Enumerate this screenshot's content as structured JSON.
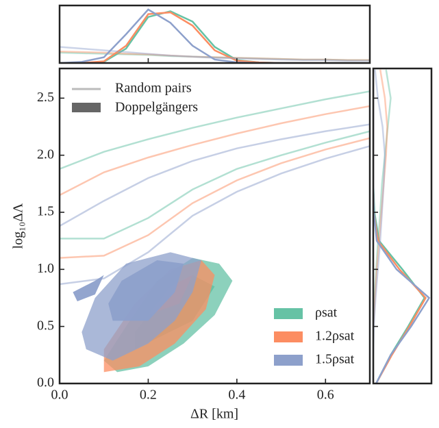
{
  "chart_data": {
    "type": "joint-kde",
    "xlabel": "ΔR [km]",
    "ylabel": "log₁₀ΔΛ",
    "xlim": [
      0,
      0.7
    ],
    "ylim": [
      0,
      2.76
    ],
    "xticks": [
      {
        "value": 0,
        "label": "0.0"
      },
      0.2,
      0.4,
      0.6
    ],
    "yticks": [
      {
        "value": 0,
        "label": "0.0"
      },
      0.5,
      {
        "value": 1,
        "label": "1.0"
      },
      1.5,
      {
        "value": 2,
        "label": "2.0"
      },
      2.5
    ],
    "style_legend": {
      "location": "upper left",
      "line": "Random pairs",
      "fill": "Doppelgängers"
    },
    "legend": "lower right",
    "top_margin": {
      "ylim": [
        0,
        1
      ],
      "x": [
        0,
        0.05,
        0.1,
        0.15,
        0.2,
        0.25,
        0.3,
        0.35,
        0.4,
        0.45,
        0.5,
        0.55,
        0.6,
        0.65,
        0.7
      ]
    },
    "right_margin": {
      "xlim": [
        0,
        1
      ],
      "y": [
        0,
        0.25,
        0.5,
        0.75,
        1,
        1.25,
        1.5,
        1.75,
        2,
        2.25,
        2.5,
        2.75
      ]
    },
    "series": [
      {
        "name": "ρsat",
        "color": "#66c2a5",
        "random_curves": [
          {
            "x": [
              0,
              0.1,
              0.2,
              0.3,
              0.4,
              0.5,
              0.6,
              0.7
            ],
            "y": [
              1.88,
              2.03,
              2.14,
              2.24,
              2.33,
              2.41,
              2.49,
              2.56
            ]
          },
          {
            "x": [
              0,
              0.1,
              0.2,
              0.3,
              0.4,
              0.5,
              0.6,
              0.7
            ],
            "y": [
              1.27,
              1.27,
              1.45,
              1.7,
              1.88,
              2.0,
              2.11,
              2.21
            ]
          }
        ],
        "regions": [
          {
            "x": [
              0.13,
              0.2,
              0.28,
              0.35,
              0.39,
              0.36,
              0.3,
              0.22,
              0.15,
              0.1
            ],
            "y": [
              0.1,
              0.15,
              0.35,
              0.6,
              0.9,
              1.05,
              1.1,
              0.9,
              0.5,
              0.2
            ]
          },
          {
            "x": [
              0.17,
              0.3,
              0.35,
              0.3,
              0.22,
              0.17
            ],
            "y": [
              0.3,
              0.55,
              0.85,
              0.95,
              0.7,
              0.45
            ]
          }
        ],
        "top_random": [
          0.18,
          0.17,
          0.16,
          0.15,
          0.14,
          0.12,
          0.11,
          0.1,
          0.09,
          0.08,
          0.07,
          0.06,
          0.06,
          0.05,
          0.05
        ],
        "top_doppel": [
          0,
          0,
          0.02,
          0.25,
          0.8,
          0.9,
          0.72,
          0.28,
          0.05,
          0.01,
          0,
          0,
          0,
          0,
          0
        ],
        "right_random": [
          0,
          0,
          0,
          0.02,
          0.05,
          0.08,
          0.12,
          0.15,
          0.2,
          0.25,
          0.3,
          0.22
        ],
        "right_doppel": [
          0.05,
          0.3,
          0.6,
          0.88,
          0.5,
          0.1,
          0.02,
          0,
          0,
          0,
          0,
          0
        ]
      },
      {
        "name": "1.2ρsat",
        "color": "#fc8d62",
        "random_curves": [
          {
            "x": [
              0,
              0.1,
              0.2,
              0.3,
              0.4,
              0.5,
              0.6,
              0.7
            ],
            "y": [
              1.65,
              1.85,
              1.98,
              2.09,
              2.19,
              2.28,
              2.36,
              2.43
            ]
          },
          {
            "x": [
              0,
              0.1,
              0.2,
              0.3,
              0.4,
              0.5,
              0.6,
              0.7
            ],
            "y": [
              1.1,
              1.12,
              1.3,
              1.58,
              1.78,
              1.93,
              2.05,
              2.15
            ]
          }
        ],
        "regions": [
          {
            "x": [
              0.1,
              0.18,
              0.26,
              0.33,
              0.35,
              0.32,
              0.25,
              0.17,
              0.1
            ],
            "y": [
              0.1,
              0.15,
              0.35,
              0.65,
              0.95,
              1.08,
              1.0,
              0.7,
              0.3
            ]
          },
          {
            "x": [
              0.2,
              0.27,
              0.3,
              0.25
            ],
            "y": [
              0.6,
              0.7,
              0.95,
              0.85
            ]
          }
        ],
        "top_random": [
          0.2,
          0.19,
          0.18,
          0.16,
          0.15,
          0.13,
          0.11,
          0.1,
          0.09,
          0.08,
          0.07,
          0.06,
          0.06,
          0.05,
          0.05
        ],
        "top_doppel": [
          0,
          0,
          0.03,
          0.3,
          0.85,
          0.88,
          0.65,
          0.22,
          0.04,
          0.01,
          0,
          0,
          0,
          0,
          0
        ],
        "right_random": [
          0,
          0,
          0,
          0.03,
          0.06,
          0.1,
          0.14,
          0.18,
          0.22,
          0.24,
          0.2,
          0.12
        ],
        "right_doppel": [
          0.05,
          0.32,
          0.62,
          0.9,
          0.45,
          0.08,
          0.01,
          0,
          0,
          0,
          0,
          0
        ]
      },
      {
        "name": "1.5ρsat",
        "color": "#8da0cb",
        "random_curves": [
          {
            "x": [
              0,
              0.1,
              0.2,
              0.3,
              0.4,
              0.5,
              0.6,
              0.7
            ],
            "y": [
              1.38,
              1.6,
              1.8,
              1.95,
              2.06,
              2.14,
              2.21,
              2.27
            ]
          },
          {
            "x": [
              0,
              0.1,
              0.2,
              0.3,
              0.4,
              0.5,
              0.6,
              0.7
            ],
            "y": [
              0.87,
              0.92,
              1.15,
              1.47,
              1.68,
              1.84,
              1.97,
              2.08
            ]
          }
        ],
        "regions": [
          {
            "x": [
              0.06,
              0.12,
              0.2,
              0.26,
              0.3,
              0.32,
              0.25,
              0.15,
              0.08,
              0.05
            ],
            "y": [
              0.3,
              0.2,
              0.35,
              0.55,
              0.8,
              1.08,
              1.15,
              1.05,
              0.75,
              0.45
            ]
          },
          {
            "x": [
              0.03,
              0.08,
              0.1,
              0.08,
              0.04
            ],
            "y": [
              0.8,
              0.9,
              0.95,
              0.78,
              0.72
            ]
          },
          {
            "x": [
              0.12,
              0.2,
              0.26,
              0.28,
              0.22,
              0.14,
              0.11
            ],
            "y": [
              0.55,
              0.55,
              0.8,
              1.05,
              1.08,
              0.9,
              0.7
            ]
          }
        ],
        "top_random": [
          0.28,
          0.25,
          0.22,
          0.19,
          0.16,
          0.13,
          0.11,
          0.09,
          0.08,
          0.07,
          0.06,
          0.05,
          0.05,
          0.04,
          0.04
        ],
        "top_doppel": [
          0,
          0.02,
          0.1,
          0.5,
          0.93,
          0.7,
          0.3,
          0.06,
          0.01,
          0,
          0,
          0,
          0,
          0,
          0
        ],
        "right_random": [
          0,
          0,
          0.01,
          0.04,
          0.08,
          0.12,
          0.15,
          0.18,
          0.2,
          0.16,
          0.08,
          0.03
        ],
        "right_doppel": [
          0.05,
          0.3,
          0.65,
          0.96,
          0.4,
          0.06,
          0.01,
          0,
          0,
          0,
          0,
          0
        ]
      }
    ]
  }
}
